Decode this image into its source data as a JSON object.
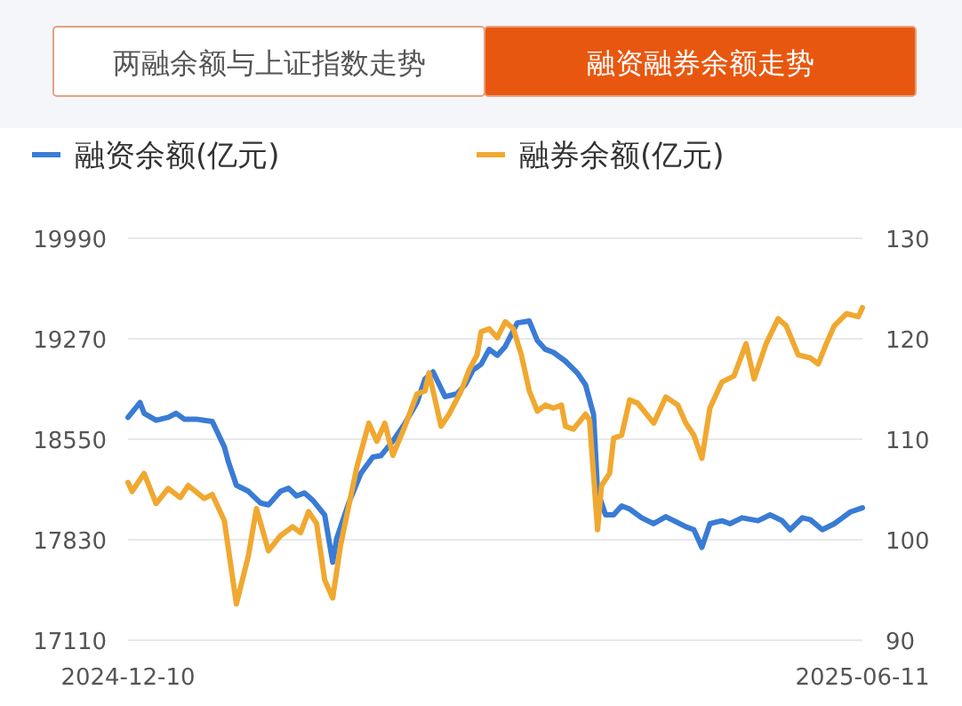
{
  "chart_data": {
    "type": "line",
    "annotations": [
      "两融余额与上证指数走势",
      "融资融券余额走势"
    ],
    "xlim": [
      "2024-12-10",
      "2025-06-11"
    ],
    "xticks": [
      "2024-12-10",
      "2025-06-11"
    ],
    "ylim": [
      17110,
      19990
    ],
    "yticks": [
      17110,
      17830,
      18550,
      19270,
      19990
    ],
    "y2lim": [
      90,
      130
    ],
    "y2ticks": [
      90,
      100,
      110,
      120,
      130
    ],
    "grid": "y",
    "legend": "top",
    "marker": "none",
    "line_style": "solid",
    "series": [
      {
        "name": "融资余额(亿元)",
        "color": "#3a7bd5",
        "x": [
          "2024-12-10",
          "2024-12-13",
          "2024-12-14",
          "2024-12-17",
          "2024-12-20",
          "2024-12-22",
          "2024-12-24",
          "2024-12-27",
          "2024-12-29",
          "2024-12-31",
          "2025-01-03",
          "2025-01-04",
          "2025-01-06",
          "2025-01-09",
          "2025-01-12",
          "2025-01-14",
          "2025-01-17",
          "2025-01-19",
          "2025-01-21",
          "2025-01-23",
          "2025-01-25",
          "2025-01-28",
          "2025-01-30",
          "2025-01-31",
          "2025-02-03",
          "2025-02-06",
          "2025-02-09",
          "2025-02-11",
          "2025-02-14",
          "2025-02-17",
          "2025-02-20",
          "2025-02-22",
          "2025-02-24",
          "2025-02-27",
          "2025-03-02",
          "2025-03-04",
          "2025-03-06",
          "2025-03-08",
          "2025-03-10",
          "2025-03-12",
          "2025-03-14",
          "2025-03-17",
          "2025-03-20",
          "2025-03-22",
          "2025-03-24",
          "2025-03-26",
          "2025-03-29",
          "2025-04-01",
          "2025-04-03",
          "2025-04-05",
          "2025-04-06",
          "2025-04-08",
          "2025-04-10",
          "2025-04-12",
          "2025-04-14",
          "2025-04-17",
          "2025-04-20",
          "2025-04-23",
          "2025-04-25",
          "2025-04-28",
          "2025-04-30",
          "2025-05-02",
          "2025-05-04",
          "2025-05-07",
          "2025-05-09",
          "2025-05-12",
          "2025-05-16",
          "2025-05-19",
          "2025-05-22",
          "2025-05-24",
          "2025-05-27",
          "2025-05-29",
          "2025-06-01",
          "2025-06-04",
          "2025-06-06",
          "2025-06-08",
          "2025-06-11"
        ],
        "values": [
          18707,
          18813,
          18736,
          18686,
          18707,
          18736,
          18694,
          18694,
          18686,
          18677,
          18495,
          18389,
          18220,
          18177,
          18093,
          18080,
          18177,
          18199,
          18144,
          18165,
          18114,
          18008,
          17669,
          17839,
          18093,
          18304,
          18423,
          18432,
          18537,
          18664,
          18813,
          18982,
          19033,
          18855,
          18876,
          18940,
          19046,
          19088,
          19194,
          19151,
          19215,
          19384,
          19397,
          19257,
          19194,
          19173,
          19109,
          19024,
          18940,
          18728,
          18177,
          18008,
          18008,
          18072,
          18050,
          17987,
          17945,
          17995,
          17966,
          17923,
          17902,
          17775,
          17945,
          17966,
          17945,
          17987,
          17966,
          18008,
          17966,
          17902,
          17987,
          17974,
          17902,
          17945,
          17987,
          18029,
          18059
        ]
      },
      {
        "name": "融券余额(亿元)",
        "color": "#f0a830",
        "axis": "y2",
        "x": [
          "2024-12-10",
          "2024-12-11",
          "2024-12-14",
          "2024-12-17",
          "2024-12-20",
          "2024-12-23",
          "2024-12-25",
          "2024-12-29",
          "2024-12-31",
          "2025-01-03",
          "2025-01-06",
          "2025-01-09",
          "2025-01-11",
          "2025-01-14",
          "2025-01-17",
          "2025-01-20",
          "2025-01-22",
          "2025-01-24",
          "2025-01-26",
          "2025-01-28",
          "2025-01-30",
          "2025-02-01",
          "2025-02-05",
          "2025-02-08",
          "2025-02-10",
          "2025-02-12",
          "2025-02-14",
          "2025-02-17",
          "2025-02-20",
          "2025-02-22",
          "2025-02-23",
          "2025-02-26",
          "2025-02-28",
          "2025-03-03",
          "2025-03-05",
          "2025-03-07",
          "2025-03-08",
          "2025-03-10",
          "2025-03-12",
          "2025-03-14",
          "2025-03-16",
          "2025-03-18",
          "2025-03-20",
          "2025-03-22",
          "2025-03-24",
          "2025-03-26",
          "2025-03-28",
          "2025-03-29",
          "2025-03-31",
          "2025-04-03",
          "2025-04-04",
          "2025-04-06",
          "2025-04-07",
          "2025-04-09",
          "2025-04-10",
          "2025-04-12",
          "2025-04-14",
          "2025-04-16",
          "2025-04-20",
          "2025-04-23",
          "2025-04-26",
          "2025-04-28",
          "2025-04-30",
          "2025-05-02",
          "2025-05-04",
          "2025-05-07",
          "2025-05-10",
          "2025-05-13",
          "2025-05-15",
          "2025-05-18",
          "2025-05-21",
          "2025-05-23",
          "2025-05-26",
          "2025-05-29",
          "2025-05-31",
          "2025-06-02",
          "2025-06-04",
          "2025-06-07",
          "2025-06-10",
          "2025-06-11"
        ],
        "values": [
          105.7,
          104.8,
          106.6,
          103.6,
          105.1,
          104.2,
          105.4,
          104.1,
          104.5,
          101.9,
          93.6,
          98.4,
          103.1,
          98.9,
          100.4,
          101.3,
          100.7,
          102.8,
          101.6,
          96.0,
          94.2,
          99.5,
          107.2,
          111.6,
          109.8,
          111.6,
          108.4,
          111.3,
          114.5,
          114.8,
          116.6,
          111.3,
          112.5,
          114.8,
          116.9,
          118.4,
          120.7,
          121.0,
          120.1,
          121.7,
          121.0,
          118.4,
          114.8,
          112.8,
          113.4,
          113.1,
          113.4,
          111.3,
          111.0,
          112.5,
          111.9,
          101.0,
          105.4,
          106.6,
          110.1,
          110.4,
          113.9,
          113.6,
          111.6,
          114.2,
          113.4,
          111.6,
          110.4,
          108.1,
          113.1,
          115.7,
          116.3,
          119.5,
          116.0,
          119.5,
          122.0,
          121.3,
          118.4,
          118.1,
          117.5,
          119.5,
          121.3,
          122.5,
          122.2,
          123.1
        ]
      }
    ]
  }
}
